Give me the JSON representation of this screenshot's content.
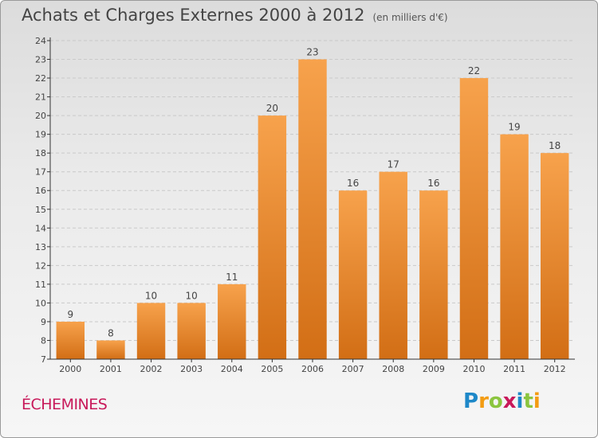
{
  "title": "Achats et Charges Externes 2000 à 2012",
  "subtitle": "(en milliers d'€)",
  "commune": "ÉCHEMINES",
  "logo": {
    "letters": [
      "P",
      "r",
      "o",
      "x",
      "i",
      "t",
      "i"
    ],
    "colors": [
      "#1e88c8",
      "#f39c12",
      "#8bc53f",
      "#c8195a",
      "#1e88c8",
      "#8bc53f",
      "#f39c12"
    ]
  },
  "colors": {
    "bar_top": "#f7a24c",
    "bar_bottom": "#d26e15",
    "grid": "#c9c9c9",
    "axis": "#333333"
  },
  "chart_data": {
    "type": "bar",
    "categories": [
      "2000",
      "2001",
      "2002",
      "2003",
      "2004",
      "2005",
      "2006",
      "2007",
      "2008",
      "2009",
      "2010",
      "2011",
      "2012"
    ],
    "values": [
      9,
      8,
      10,
      10,
      11,
      20,
      23,
      16,
      17,
      16,
      22,
      19,
      18
    ],
    "data_labels": [
      "9",
      "8",
      "10",
      "10",
      "11",
      "20",
      "23",
      "16",
      "17",
      "16",
      "22",
      "19",
      "18"
    ],
    "yticks": [
      "7",
      "8",
      "9",
      "10",
      "11",
      "12",
      "13",
      "14",
      "15",
      "16",
      "17",
      "18",
      "19",
      "20",
      "21",
      "22",
      "23",
      "24"
    ],
    "ylim": [
      7,
      24
    ],
    "grid": true
  }
}
